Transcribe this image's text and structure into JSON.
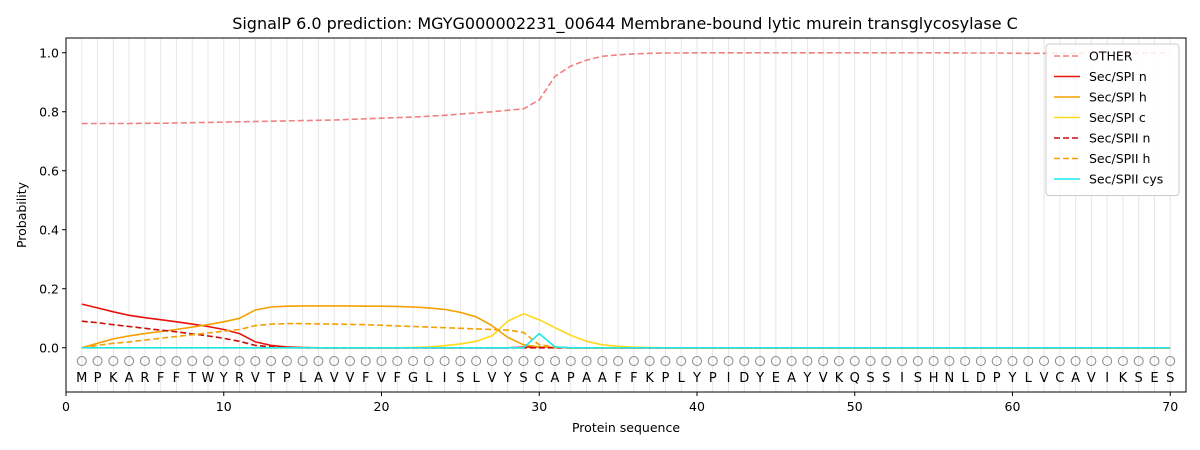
{
  "chart_data": {
    "type": "line",
    "title": "SignalP 6.0 prediction: MGYG000002231_00644 Membrane-bound lytic murein transglycosylase C",
    "xlabel": "Protein sequence",
    "ylabel": "Probability",
    "xlim": [
      0,
      71
    ],
    "ylim": [
      -0.15,
      1.05
    ],
    "xticks": [
      0,
      10,
      20,
      30,
      40,
      50,
      60,
      70
    ],
    "yticks": [
      0.0,
      0.2,
      0.4,
      0.6,
      0.8,
      1.0
    ],
    "ytick_labels": [
      "0.0",
      "0.2",
      "0.4",
      "0.6",
      "0.8",
      "1.0"
    ],
    "grid": "vertical lines at each residue",
    "legend_position": "top-right",
    "sequence": [
      "M",
      "P",
      "K",
      "A",
      "R",
      "F",
      "F",
      "T",
      "W",
      "Y",
      "R",
      "V",
      "T",
      "P",
      "L",
      "A",
      "V",
      "V",
      "F",
      "V",
      "F",
      "G",
      "L",
      "I",
      "S",
      "L",
      "V",
      "Y",
      "S",
      "C",
      "A",
      "P",
      "A",
      "A",
      "F",
      "F",
      "K",
      "P",
      "L",
      "Y",
      "P",
      "I",
      "D",
      "Y",
      "E",
      "A",
      "Y",
      "V",
      "K",
      "Q",
      "S",
      "S",
      "I",
      "S",
      "H",
      "N",
      "L",
      "D",
      "P",
      "Y",
      "L",
      "V",
      "C",
      "A",
      "V",
      "I",
      "K",
      "S",
      "E",
      "S"
    ],
    "series": [
      {
        "name": "OTHER",
        "color": "#f08080",
        "dash": "dashed",
        "values": [
          0.76,
          0.76,
          0.76,
          0.76,
          0.761,
          0.761,
          0.762,
          0.763,
          0.764,
          0.765,
          0.766,
          0.767,
          0.768,
          0.769,
          0.77,
          0.771,
          0.772,
          0.774,
          0.776,
          0.778,
          0.78,
          0.782,
          0.785,
          0.788,
          0.792,
          0.796,
          0.8,
          0.805,
          0.81,
          0.84,
          0.92,
          0.955,
          0.975,
          0.988,
          0.993,
          0.996,
          0.998,
          0.999,
          0.999,
          1.0,
          1.0,
          1.0,
          1.0,
          1.0,
          1.0,
          1.0,
          1.0,
          1.0,
          1.0,
          1.0,
          1.0,
          1.0,
          1.0,
          1.0,
          1.0,
          1.0,
          0.999,
          0.999,
          0.999,
          0.998,
          0.998,
          0.998,
          0.998,
          0.998,
          0.998,
          0.998,
          0.998,
          0.998,
          0.999,
          0.999
        ]
      },
      {
        "name": "Sec/SPI n",
        "color": "#e8120c",
        "dash": "solid",
        "values": [
          0.148,
          0.135,
          0.122,
          0.11,
          0.102,
          0.095,
          0.088,
          0.08,
          0.072,
          0.062,
          0.048,
          0.02,
          0.008,
          0.003,
          0.001,
          0.0,
          0.0,
          0.0,
          0.0,
          0.0,
          0.0,
          0.0,
          0.0,
          0.0,
          0.0,
          0.0,
          0.0,
          0.0,
          0.002,
          0.003,
          0.001,
          0.0,
          0.0,
          0.0,
          0.0,
          0.0,
          0.0,
          0.0,
          0.0,
          0.0,
          0.0,
          0.0,
          0.0,
          0.0,
          0.0,
          0.0,
          0.0,
          0.0,
          0.0,
          0.0,
          0.0,
          0.0,
          0.0,
          0.0,
          0.0,
          0.0,
          0.0,
          0.0,
          0.0,
          0.0,
          0.0,
          0.0,
          0.0,
          0.0,
          0.0,
          0.0,
          0.0,
          0.0,
          0.0,
          0.0
        ]
      },
      {
        "name": "Sec/SPI h",
        "color": "#f5a000",
        "dash": "solid",
        "values": [
          0.0,
          0.015,
          0.03,
          0.04,
          0.048,
          0.055,
          0.062,
          0.07,
          0.078,
          0.088,
          0.1,
          0.128,
          0.138,
          0.141,
          0.142,
          0.142,
          0.142,
          0.142,
          0.141,
          0.141,
          0.14,
          0.138,
          0.135,
          0.13,
          0.12,
          0.105,
          0.075,
          0.035,
          0.01,
          0.003,
          0.001,
          0.0,
          0.0,
          0.0,
          0.0,
          0.0,
          0.0,
          0.0,
          0.0,
          0.0,
          0.0,
          0.0,
          0.0,
          0.0,
          0.0,
          0.0,
          0.0,
          0.0,
          0.0,
          0.0,
          0.0,
          0.0,
          0.0,
          0.0,
          0.0,
          0.0,
          0.0,
          0.0,
          0.0,
          0.0,
          0.0,
          0.0,
          0.0,
          0.0,
          0.0,
          0.0,
          0.0,
          0.0,
          0.0,
          0.0
        ]
      },
      {
        "name": "Sec/SPI c",
        "color": "#ffd81a",
        "dash": "solid",
        "values": [
          0.0,
          0.0,
          0.0,
          0.0,
          0.0,
          0.0,
          0.0,
          0.0,
          0.0,
          0.0,
          0.0,
          0.0,
          0.0,
          0.0,
          0.0,
          0.0,
          0.0,
          0.0,
          0.0,
          0.0,
          0.0,
          0.001,
          0.003,
          0.007,
          0.013,
          0.022,
          0.04,
          0.09,
          0.115,
          0.095,
          0.068,
          0.042,
          0.022,
          0.01,
          0.005,
          0.002,
          0.001,
          0.0,
          0.0,
          0.0,
          0.0,
          0.0,
          0.0,
          0.0,
          0.0,
          0.0,
          0.0,
          0.0,
          0.0,
          0.0,
          0.0,
          0.0,
          0.0,
          0.0,
          0.0,
          0.0,
          0.0,
          0.0,
          0.0,
          0.0,
          0.0,
          0.0,
          0.0,
          0.0,
          0.0,
          0.0,
          0.0,
          0.0,
          0.0,
          0.0
        ]
      },
      {
        "name": "Sec/SPII n",
        "color": "#cc0e0a",
        "dash": "dashed",
        "values": [
          0.09,
          0.085,
          0.078,
          0.072,
          0.066,
          0.06,
          0.054,
          0.047,
          0.04,
          0.032,
          0.022,
          0.008,
          0.003,
          0.001,
          0.0,
          0.0,
          0.0,
          0.0,
          0.0,
          0.0,
          0.0,
          0.0,
          0.0,
          0.0,
          0.0,
          0.0,
          0.0,
          0.0,
          0.0,
          0.0,
          0.0,
          0.0,
          0.0,
          0.0,
          0.0,
          0.0,
          0.0,
          0.0,
          0.0,
          0.0,
          0.0,
          0.0,
          0.0,
          0.0,
          0.0,
          0.0,
          0.0,
          0.0,
          0.0,
          0.0,
          0.0,
          0.0,
          0.0,
          0.0,
          0.0,
          0.0,
          0.0,
          0.0,
          0.0,
          0.0,
          0.0,
          0.0,
          0.0,
          0.0,
          0.0,
          0.0,
          0.0,
          0.0,
          0.0,
          0.0
        ]
      },
      {
        "name": "Sec/SPII h",
        "color": "#f5a000",
        "dash": "dashed",
        "values": [
          0.0,
          0.008,
          0.015,
          0.02,
          0.026,
          0.032,
          0.038,
          0.044,
          0.05,
          0.056,
          0.062,
          0.075,
          0.08,
          0.082,
          0.082,
          0.081,
          0.08,
          0.079,
          0.078,
          0.076,
          0.074,
          0.072,
          0.07,
          0.068,
          0.066,
          0.064,
          0.062,
          0.06,
          0.052,
          0.01,
          0.003,
          0.0,
          0.0,
          0.0,
          0.0,
          0.0,
          0.0,
          0.0,
          0.0,
          0.0,
          0.0,
          0.0,
          0.0,
          0.0,
          0.0,
          0.0,
          0.0,
          0.0,
          0.0,
          0.0,
          0.0,
          0.0,
          0.0,
          0.0,
          0.0,
          0.0,
          0.0,
          0.0,
          0.0,
          0.0,
          0.0,
          0.0,
          0.0,
          0.0,
          0.0,
          0.0,
          0.0,
          0.0,
          0.0,
          0.0
        ]
      },
      {
        "name": "Sec/SPII cys",
        "color": "#1de8e8",
        "dash": "solid",
        "values": [
          0.0,
          0.0,
          0.0,
          0.0,
          0.0,
          0.0,
          0.0,
          0.0,
          0.0,
          0.0,
          0.0,
          0.0,
          0.0,
          0.0,
          0.0,
          0.0,
          0.0,
          0.0,
          0.0,
          0.0,
          0.0,
          0.0,
          0.0,
          0.0,
          0.0,
          0.0,
          0.0,
          0.0,
          0.0,
          0.048,
          0.003,
          0.0,
          0.0,
          0.0,
          0.0,
          0.0,
          0.0,
          0.0,
          0.0,
          0.0,
          0.0,
          0.0,
          0.0,
          0.0,
          0.0,
          0.0,
          0.0,
          0.0,
          0.0,
          0.0,
          0.0,
          0.0,
          0.0,
          0.0,
          0.0,
          0.0,
          0.0,
          0.0,
          0.0,
          0.0,
          0.0,
          0.0,
          0.0,
          0.0,
          0.0,
          0.0,
          0.0,
          0.0,
          0.0,
          0.0
        ]
      }
    ]
  }
}
